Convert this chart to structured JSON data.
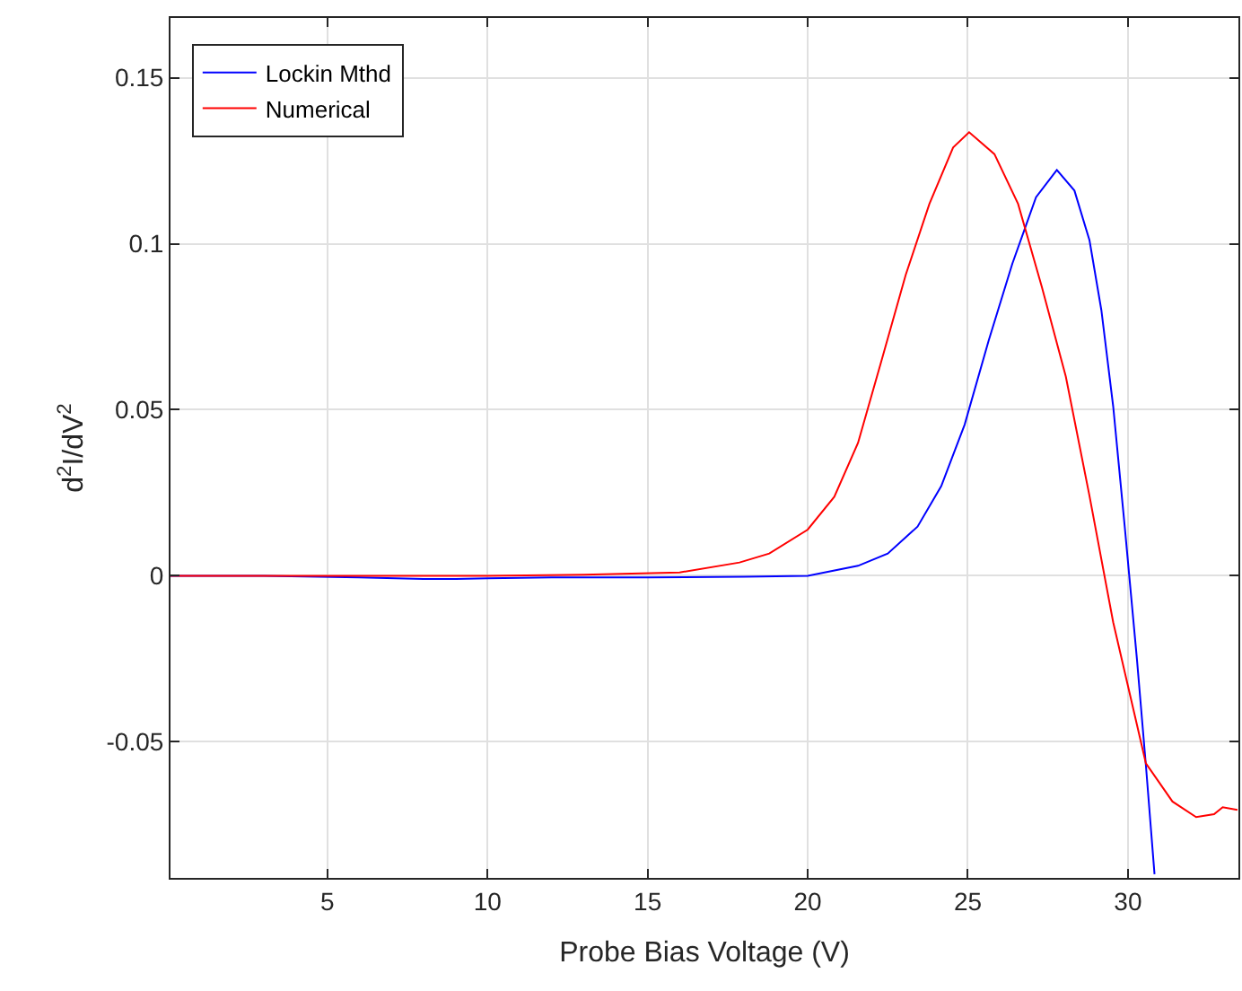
{
  "chart_data": {
    "type": "line",
    "xlabel": "Probe Bias Voltage (V)",
    "ylabel": "d$^{2}$I/dV$^{2}$",
    "xlim": [
      0.1,
      33.45
    ],
    "ylim": [
      -0.091,
      0.168
    ],
    "xticks": [
      5,
      10,
      15,
      20,
      25,
      30
    ],
    "yticks": [
      -0.05,
      0,
      0.05,
      0.1,
      0.15
    ],
    "grid": true,
    "legend": "top left",
    "line_style": "solid",
    "marker": "none",
    "series": [
      {
        "name": "Lockin Mthd",
        "color": "#0000ff",
        "x": [
          0.1,
          3,
          6,
          8,
          9,
          10,
          12,
          15,
          18,
          20,
          21.57,
          22.5,
          23.43,
          24.17,
          24.9,
          25.65,
          26.39,
          27.13,
          27.78,
          28.33,
          28.8,
          29.17,
          29.54,
          29.9,
          30.28,
          30.56,
          30.83
        ],
        "values": [
          0,
          0,
          -0.0005,
          -0.001,
          -0.001,
          -0.0008,
          -0.0005,
          -0.0005,
          -0.0003,
          0,
          0.003,
          0.0067,
          0.0148,
          0.027,
          0.0455,
          0.0708,
          0.094,
          0.114,
          0.1222,
          0.116,
          0.101,
          0.08,
          0.051,
          0.0148,
          -0.025,
          -0.057,
          -0.0899
        ]
      },
      {
        "name": "Numerical",
        "color": "#ff0000",
        "x": [
          0.1,
          5,
          10,
          13,
          16,
          17.87,
          18.8,
          20,
          20.83,
          21.57,
          22.31,
          23.06,
          23.8,
          24.54,
          25.04,
          25.83,
          26.57,
          27.31,
          28.06,
          28.8,
          29.54,
          30.56,
          31.39,
          32.13,
          32.69,
          32.96,
          33.42
        ],
        "values": [
          0,
          0,
          0,
          0.0003,
          0.001,
          0.004,
          0.0067,
          0.0139,
          0.0238,
          0.04,
          0.065,
          0.0906,
          0.112,
          0.129,
          0.1336,
          0.127,
          0.112,
          0.087,
          0.06,
          0.024,
          -0.014,
          -0.0565,
          -0.068,
          -0.0727,
          -0.0718,
          -0.0697,
          -0.0705
        ]
      }
    ]
  }
}
